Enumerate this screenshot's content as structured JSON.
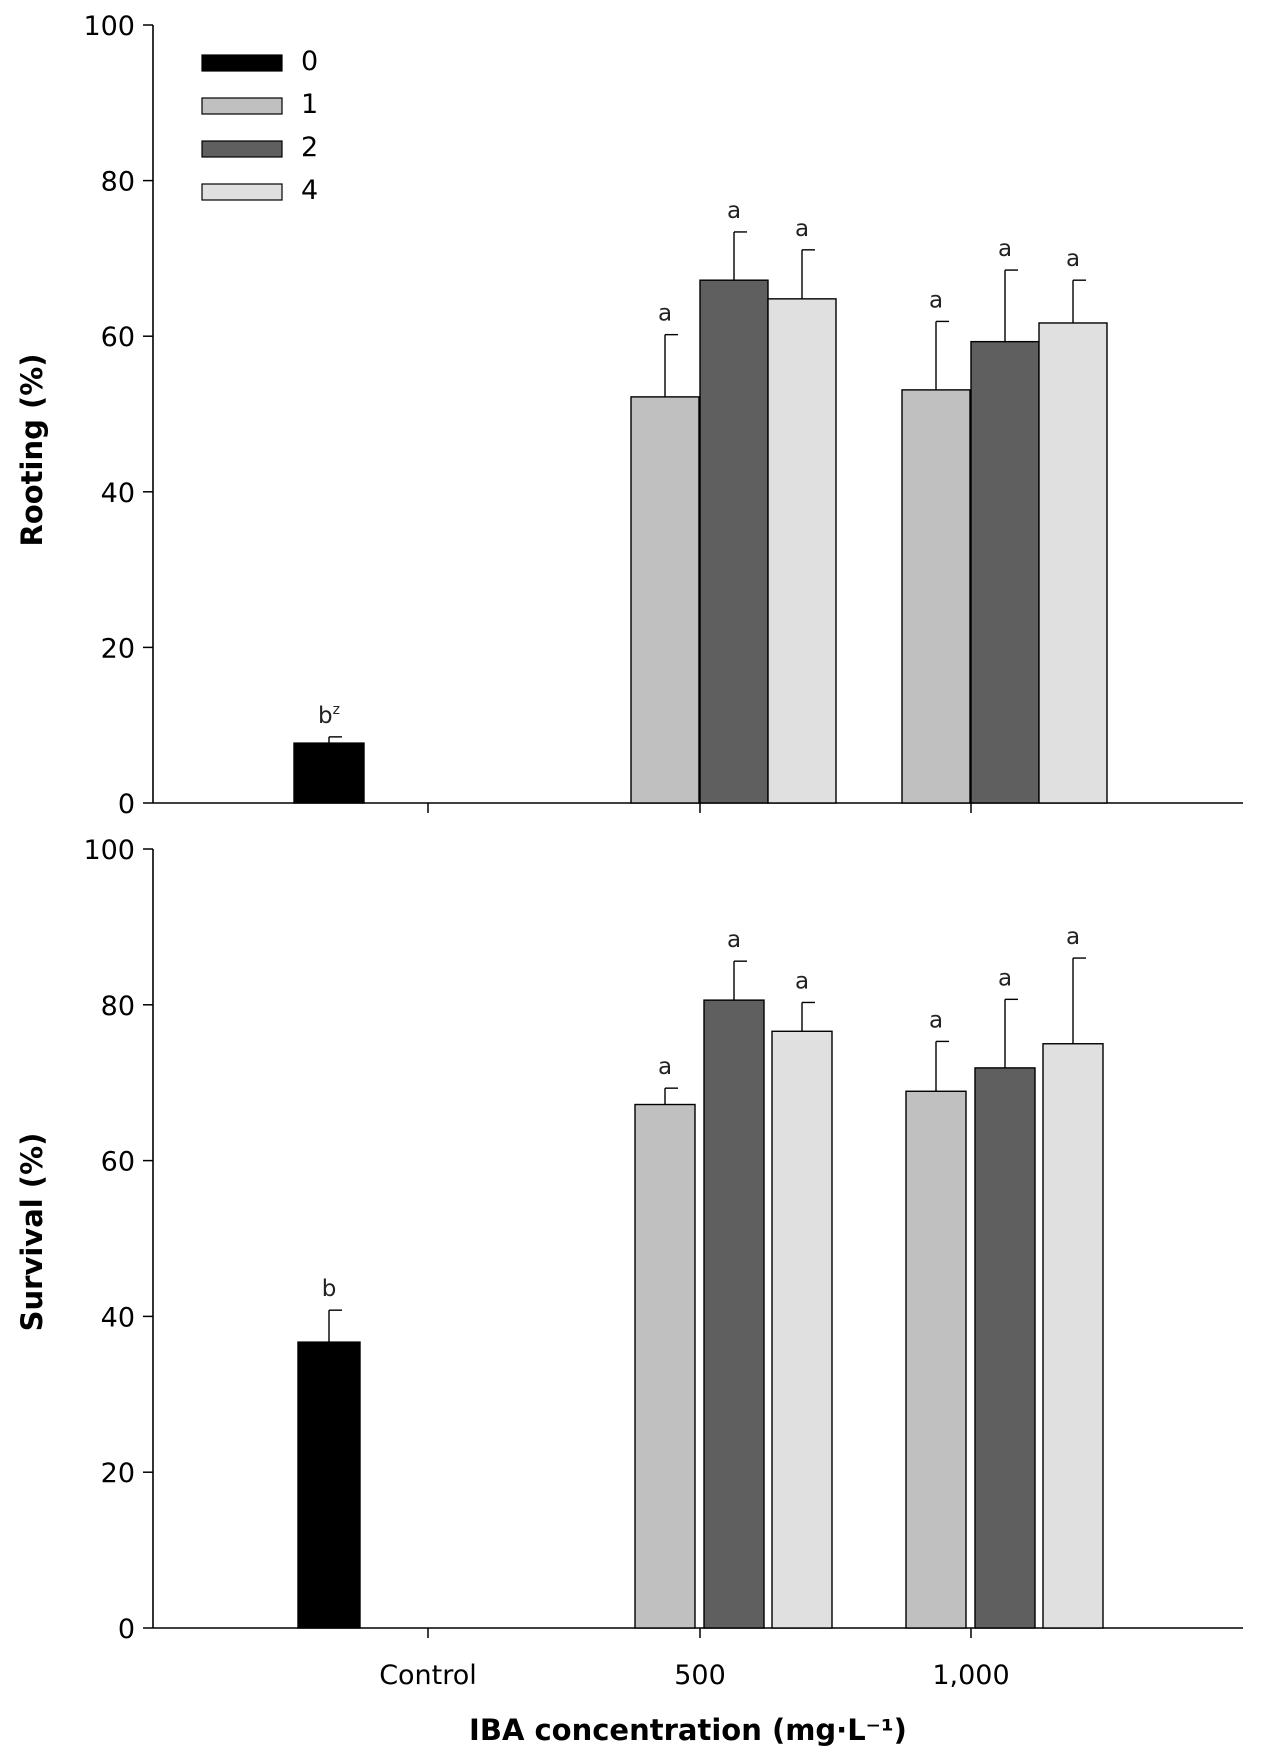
{
  "chart_data": [
    {
      "type": "bar",
      "categories": [
        "Control",
        "500",
        "1,000"
      ],
      "ylabel": "Rooting (%)",
      "xlabel": "",
      "ylim": [
        0,
        100
      ],
      "yticks": [
        0,
        20,
        40,
        60,
        80,
        100
      ],
      "legend": {
        "placement": "top-left",
        "entries": [
          "0",
          "1",
          "2",
          "4"
        ]
      },
      "grid": false,
      "series": [
        {
          "name": "0",
          "color": "#000000",
          "values": [
            7.7,
            null,
            null
          ],
          "errors": [
            0.8,
            null,
            null
          ],
          "labels": [
            "b",
            null,
            null
          ]
        },
        {
          "name": "1",
          "color": "#c0c0c0",
          "values": [
            null,
            52.2,
            53.1
          ],
          "errors": [
            null,
            8.0,
            8.8
          ],
          "labels": [
            null,
            "a",
            "a"
          ]
        },
        {
          "name": "2",
          "color": "#5f5f5f",
          "values": [
            null,
            67.2,
            59.3
          ],
          "errors": [
            null,
            6.2,
            9.2
          ],
          "labels": [
            null,
            "a",
            "a"
          ]
        },
        {
          "name": "4",
          "color": "#e0e0e0",
          "values": [
            null,
            64.8,
            61.7
          ],
          "errors": [
            null,
            6.3,
            5.5
          ],
          "labels": [
            null,
            "a",
            "a"
          ]
        }
      ],
      "annotations": [
        {
          "text": "b",
          "superscript": "z"
        }
      ]
    },
    {
      "type": "bar",
      "categories": [
        "Control",
        "500",
        "1,000"
      ],
      "ylabel": "Survival (%)",
      "xlabel": "IBA concentration (mg·L⁻¹)",
      "ylim": [
        0,
        100
      ],
      "yticks": [
        0,
        20,
        40,
        60,
        80,
        100
      ],
      "grid": false,
      "series": [
        {
          "name": "0",
          "color": "#000000",
          "values": [
            36.7,
            null,
            null
          ],
          "errors": [
            4.1,
            null,
            null
          ],
          "labels": [
            "b",
            null,
            null
          ]
        },
        {
          "name": "1",
          "color": "#c0c0c0",
          "values": [
            null,
            67.2,
            68.9
          ],
          "errors": [
            null,
            2.1,
            6.4
          ],
          "labels": [
            null,
            "a",
            "a"
          ]
        },
        {
          "name": "2",
          "color": "#5f5f5f",
          "values": [
            null,
            80.6,
            71.9
          ],
          "errors": [
            null,
            5.0,
            8.8
          ],
          "labels": [
            null,
            "a",
            "a"
          ]
        },
        {
          "name": "4",
          "color": "#e0e0e0",
          "values": [
            null,
            76.6,
            75.0
          ],
          "errors": [
            null,
            3.7,
            11.0
          ],
          "labels": [
            null,
            "a",
            "a"
          ]
        }
      ]
    }
  ]
}
